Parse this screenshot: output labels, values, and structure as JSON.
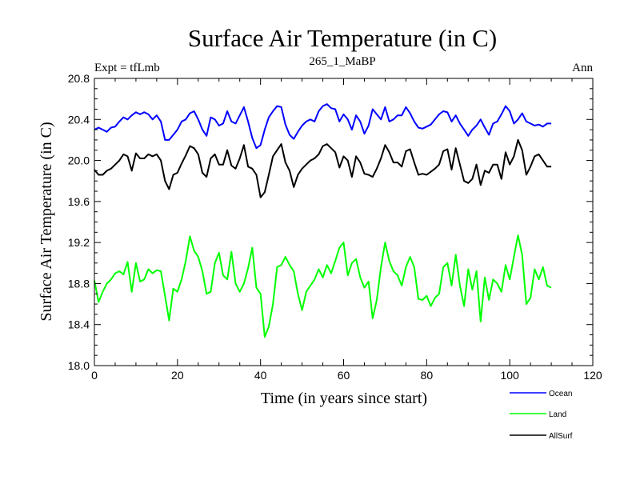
{
  "chart_data": {
    "type": "line",
    "title": "Surface Air Temperature (in C)",
    "subtitle_left": "Expt = tfLmb",
    "subtitle_center": "265_1_MaBP",
    "subtitle_right": "Ann",
    "xlabel": "Time (in years since start)",
    "ylabel": "Surface Air Temperature (in C)",
    "xlim": [
      0,
      120
    ],
    "ylim": [
      18.0,
      20.8
    ],
    "xticks": [
      0,
      20,
      40,
      60,
      80,
      100,
      120
    ],
    "xtick_labels": [
      "0",
      "20",
      "40",
      "60",
      "80",
      "100",
      "120"
    ],
    "yticks": [
      18.0,
      18.4,
      18.8,
      19.2,
      19.6,
      20.0,
      20.4,
      20.8
    ],
    "ytick_labels": [
      "18.0",
      "18.4",
      "18.8",
      "19.2",
      "19.6",
      "20.0",
      "20.4",
      "20.8"
    ],
    "x": [
      0,
      1,
      2,
      3,
      4,
      5,
      6,
      7,
      8,
      9,
      10,
      11,
      12,
      13,
      14,
      15,
      16,
      17,
      18,
      19,
      20,
      21,
      22,
      23,
      24,
      25,
      26,
      27,
      28,
      29,
      30,
      31,
      32,
      33,
      34,
      35,
      36,
      37,
      38,
      39,
      40,
      41,
      42,
      43,
      44,
      45,
      46,
      47,
      48,
      49,
      50,
      51,
      52,
      53,
      54,
      55,
      56,
      57,
      58,
      59,
      60,
      61,
      62,
      63,
      64,
      65,
      66,
      67,
      68,
      69,
      70,
      71,
      72,
      73,
      74,
      75,
      76,
      77,
      78,
      79,
      80,
      81,
      82,
      83,
      84,
      85,
      86,
      87,
      88,
      89,
      90,
      91,
      92,
      93,
      94,
      95,
      96,
      97,
      98,
      99,
      100,
      101,
      102,
      103,
      104,
      105,
      106,
      107,
      108,
      109,
      110
    ],
    "series": [
      {
        "name": "Ocean",
        "color": "#0000ff",
        "values": [
          20.3,
          20.32,
          20.3,
          20.28,
          20.32,
          20.33,
          20.38,
          20.42,
          20.4,
          20.44,
          20.47,
          20.45,
          20.47,
          20.45,
          20.4,
          20.44,
          20.38,
          20.2,
          20.2,
          20.25,
          20.3,
          20.38,
          20.4,
          20.46,
          20.48,
          20.4,
          20.3,
          20.24,
          20.42,
          20.4,
          20.34,
          20.36,
          20.48,
          20.38,
          20.36,
          20.44,
          20.52,
          20.38,
          20.22,
          20.12,
          20.15,
          20.3,
          20.42,
          20.48,
          20.53,
          20.52,
          20.35,
          20.25,
          20.21,
          20.28,
          20.34,
          20.38,
          20.4,
          20.38,
          20.48,
          20.53,
          20.55,
          20.51,
          20.5,
          20.38,
          20.45,
          20.4,
          20.3,
          20.44,
          20.38,
          20.26,
          20.34,
          20.5,
          20.45,
          20.4,
          20.52,
          20.38,
          20.4,
          20.44,
          20.44,
          20.52,
          20.46,
          20.38,
          20.32,
          20.31,
          20.33,
          20.35,
          20.4,
          20.45,
          20.48,
          20.47,
          20.38,
          20.44,
          20.36,
          20.3,
          20.24,
          20.3,
          20.34,
          20.4,
          20.32,
          20.25,
          20.36,
          20.38,
          20.45,
          20.53,
          20.48,
          20.36,
          20.4,
          20.46,
          20.38,
          20.36,
          20.34,
          20.35,
          20.33,
          20.36,
          20.36
        ]
      },
      {
        "name": "Land",
        "color": "#00ff00",
        "values": [
          18.83,
          18.62,
          18.72,
          18.8,
          18.84,
          18.9,
          18.92,
          18.89,
          19.01,
          18.72,
          19.0,
          18.82,
          18.84,
          18.94,
          18.9,
          18.93,
          18.92,
          18.68,
          18.44,
          18.75,
          18.72,
          18.84,
          19.02,
          19.26,
          19.12,
          19.06,
          18.92,
          18.7,
          18.72,
          19.0,
          19.1,
          18.88,
          18.84,
          19.11,
          18.8,
          18.72,
          18.8,
          18.95,
          19.15,
          18.76,
          18.7,
          18.28,
          18.38,
          18.6,
          18.96,
          18.98,
          19.06,
          18.98,
          18.92,
          18.7,
          18.54,
          18.72,
          18.78,
          18.84,
          18.94,
          18.86,
          18.98,
          18.9,
          19.02,
          19.15,
          19.2,
          18.88,
          19.0,
          19.04,
          18.86,
          18.76,
          18.82,
          18.46,
          18.64,
          18.96,
          19.2,
          19.02,
          18.92,
          18.88,
          18.78,
          18.96,
          19.06,
          18.96,
          18.65,
          18.64,
          18.68,
          18.58,
          18.66,
          18.7,
          18.96,
          19.0,
          18.78,
          19.08,
          18.78,
          18.58,
          18.94,
          18.74,
          18.92,
          18.43,
          18.86,
          18.64,
          18.84,
          18.8,
          18.72,
          18.98,
          18.84,
          19.06,
          19.27,
          19.08,
          18.6,
          18.66,
          18.94,
          18.84,
          18.96,
          18.78,
          18.76
        ]
      },
      {
        "name": "AllSurf",
        "color": "#000000",
        "values": [
          19.91,
          19.86,
          19.86,
          19.9,
          19.92,
          19.96,
          20.0,
          20.06,
          20.04,
          19.9,
          20.07,
          20.02,
          20.02,
          20.06,
          20.04,
          20.06,
          20.0,
          19.8,
          19.72,
          19.86,
          19.88,
          19.97,
          20.05,
          20.14,
          20.12,
          20.06,
          19.88,
          19.84,
          20.02,
          20.06,
          19.96,
          19.96,
          20.1,
          19.95,
          19.92,
          20.02,
          20.15,
          19.94,
          19.92,
          19.86,
          19.64,
          19.69,
          19.86,
          20.04,
          20.1,
          20.16,
          19.98,
          19.9,
          19.74,
          19.86,
          19.92,
          19.96,
          20.0,
          20.02,
          20.06,
          20.14,
          20.16,
          20.12,
          20.08,
          19.93,
          20.04,
          20.0,
          19.84,
          20.04,
          19.98,
          19.87,
          19.86,
          19.84,
          19.92,
          20.02,
          20.15,
          20.08,
          19.98,
          19.98,
          19.94,
          20.09,
          20.11,
          19.98,
          19.86,
          19.87,
          19.86,
          19.89,
          19.92,
          19.96,
          20.09,
          20.11,
          19.91,
          20.12,
          19.96,
          19.8,
          19.78,
          19.82,
          19.96,
          19.76,
          19.9,
          19.88,
          19.96,
          19.96,
          19.82,
          20.08,
          19.96,
          20.04,
          20.2,
          20.1,
          19.86,
          19.94,
          20.04,
          20.06,
          20.0,
          19.94,
          19.94
        ]
      }
    ],
    "legend": {
      "placement": "bottom-right",
      "entries": [
        "Ocean",
        "Land",
        "AllSurf"
      ]
    }
  }
}
